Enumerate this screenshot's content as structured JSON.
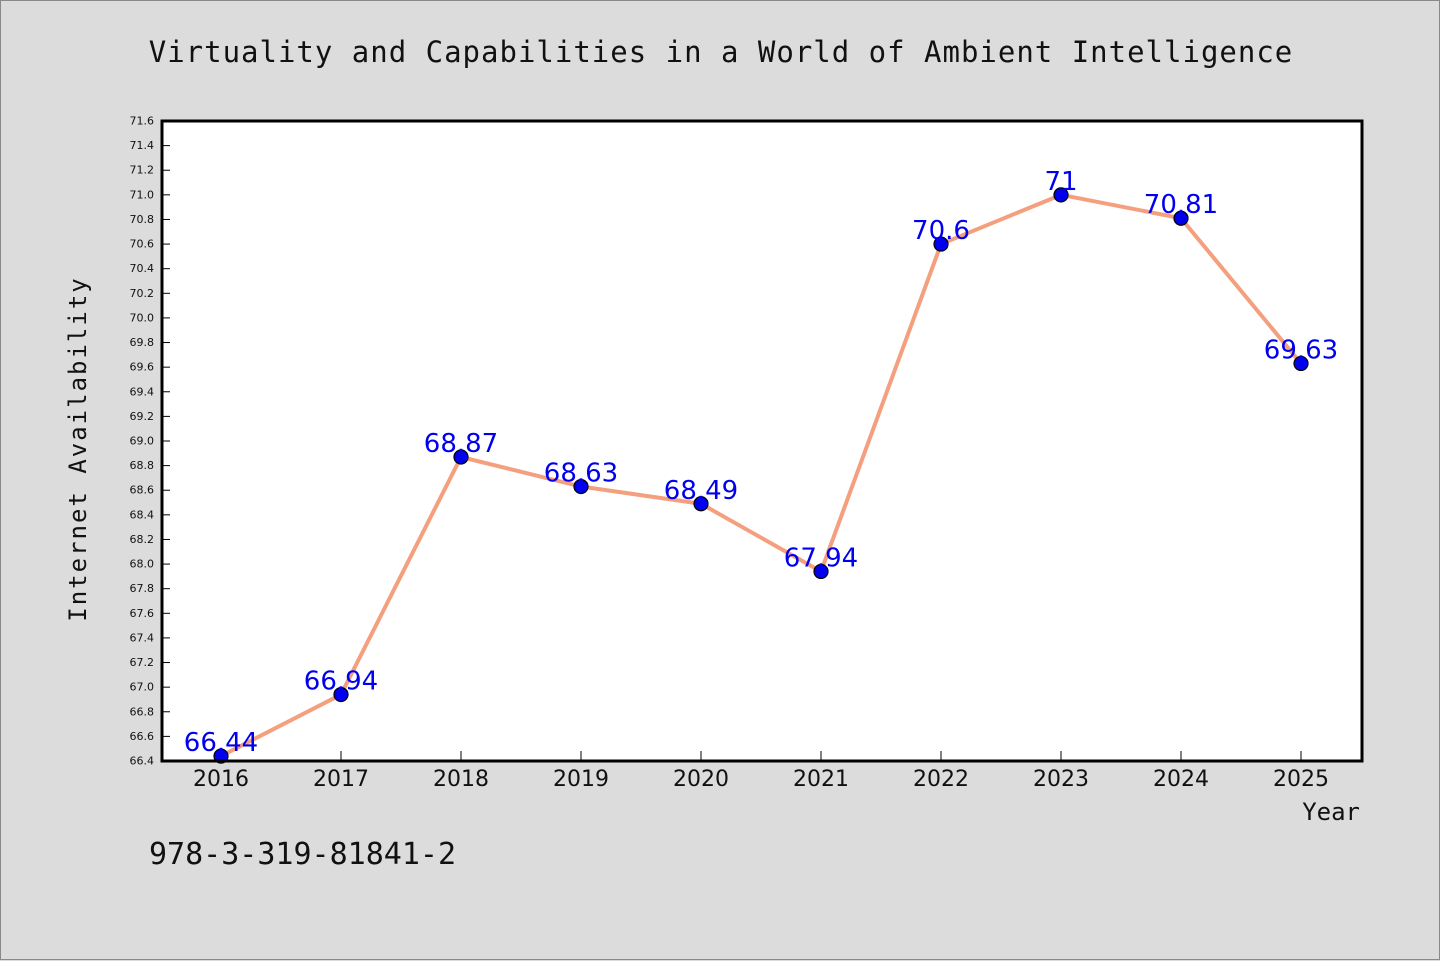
{
  "chart_data": {
    "type": "line",
    "title": "Virtuality and Capabilities in a World of Ambient Intelligence",
    "xlabel": "Year",
    "ylabel": "Internet Availability",
    "categories": [
      "2016",
      "2017",
      "2018",
      "2019",
      "2020",
      "2021",
      "2022",
      "2023",
      "2024",
      "2025"
    ],
    "series": [
      {
        "values": [
          66.44,
          66.94,
          68.87,
          68.63,
          68.49,
          67.94,
          70.6,
          71,
          70.81,
          69.63
        ],
        "labels": [
          "66.44",
          "66.94",
          "68.87",
          "68.63",
          "68.49",
          "67.94",
          "70.6",
          "71",
          "70.81",
          "69.63"
        ]
      }
    ],
    "ylim": [
      66.4,
      71.6
    ],
    "yticks": [
      "66.4",
      "66.6",
      "66.8",
      "67.0",
      "67.2",
      "67.4",
      "67.6",
      "67.8",
      "68.0",
      "68.2",
      "68.4",
      "68.6",
      "68.8",
      "69.0",
      "69.2",
      "69.4",
      "69.6",
      "69.8",
      "70.0",
      "70.2",
      "70.4",
      "70.6",
      "70.8",
      "71.0",
      "71.2",
      "71.4",
      "71.6"
    ],
    "grid": false,
    "line_color": "#f4a07e",
    "marker_color": "#0000ee",
    "label_color": "#0000ee"
  },
  "footer": {
    "isbn": "978-3-319-81841-2"
  }
}
